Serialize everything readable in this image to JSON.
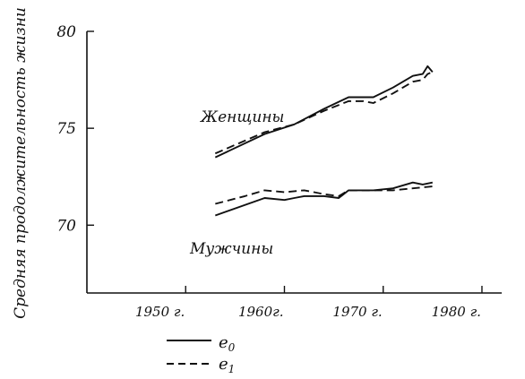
{
  "chart_data": {
    "type": "line",
    "title": "",
    "xlabel": "",
    "ylabel": "Средняя продолжительность жизни",
    "xlim": [
      1940,
      1982
    ],
    "ylim": [
      66.5,
      80
    ],
    "x_ticks": [
      1950,
      1960,
      1970,
      1980
    ],
    "x_tick_labels": [
      "1950 г.",
      "1960г.",
      "1970 г.",
      "1980 г."
    ],
    "y_ticks": [
      70,
      75,
      80
    ],
    "y_tick_labels": [
      "70",
      "75",
      "80"
    ],
    "grid": false,
    "legend": {
      "placement": "bottom-left",
      "entries": [
        {
          "label": "e0",
          "style": "solid"
        },
        {
          "label": "e1",
          "style": "dashed"
        }
      ]
    },
    "annotations": [
      {
        "text": "Женщины",
        "group": "women"
      },
      {
        "text": "Мужчины",
        "group": "men"
      }
    ],
    "series": [
      {
        "name": "e0",
        "group": "women",
        "style": "solid",
        "x": [
          1953,
          1958,
          1961,
          1964,
          1966.5,
          1968,
          1969,
          1971,
          1973,
          1974,
          1974.5,
          1975
        ],
        "y": [
          73.5,
          74.7,
          75.2,
          76.0,
          76.6,
          76.6,
          76.6,
          77.1,
          77.7,
          77.8,
          78.2,
          77.9
        ]
      },
      {
        "name": "e1",
        "group": "women",
        "style": "dashed",
        "x": [
          1953,
          1958,
          1961,
          1964,
          1966.5,
          1968,
          1969,
          1971,
          1973,
          1974,
          1974.5,
          1975
        ],
        "y": [
          73.7,
          74.8,
          75.2,
          75.9,
          76.4,
          76.4,
          76.3,
          76.8,
          77.4,
          77.5,
          77.8,
          77.9
        ]
      },
      {
        "name": "e0",
        "group": "men",
        "style": "solid",
        "x": [
          1953,
          1958,
          1960,
          1961,
          1962,
          1964,
          1965.5,
          1966.5,
          1968,
          1969,
          1971,
          1973,
          1974,
          1975
        ],
        "y": [
          70.5,
          71.4,
          71.3,
          71.4,
          71.5,
          71.5,
          71.4,
          71.8,
          71.8,
          71.8,
          71.9,
          72.2,
          72.1,
          72.2
        ]
      },
      {
        "name": "e1",
        "group": "men",
        "style": "dashed",
        "x": [
          1953,
          1956,
          1958,
          1960,
          1962,
          1963,
          1964,
          1965.5,
          1966.5,
          1968,
          1969,
          1971,
          1973,
          1975
        ],
        "y": [
          71.1,
          71.5,
          71.8,
          71.7,
          71.8,
          71.7,
          71.6,
          71.5,
          71.8,
          71.8,
          71.8,
          71.8,
          71.9,
          72.0
        ]
      }
    ]
  }
}
